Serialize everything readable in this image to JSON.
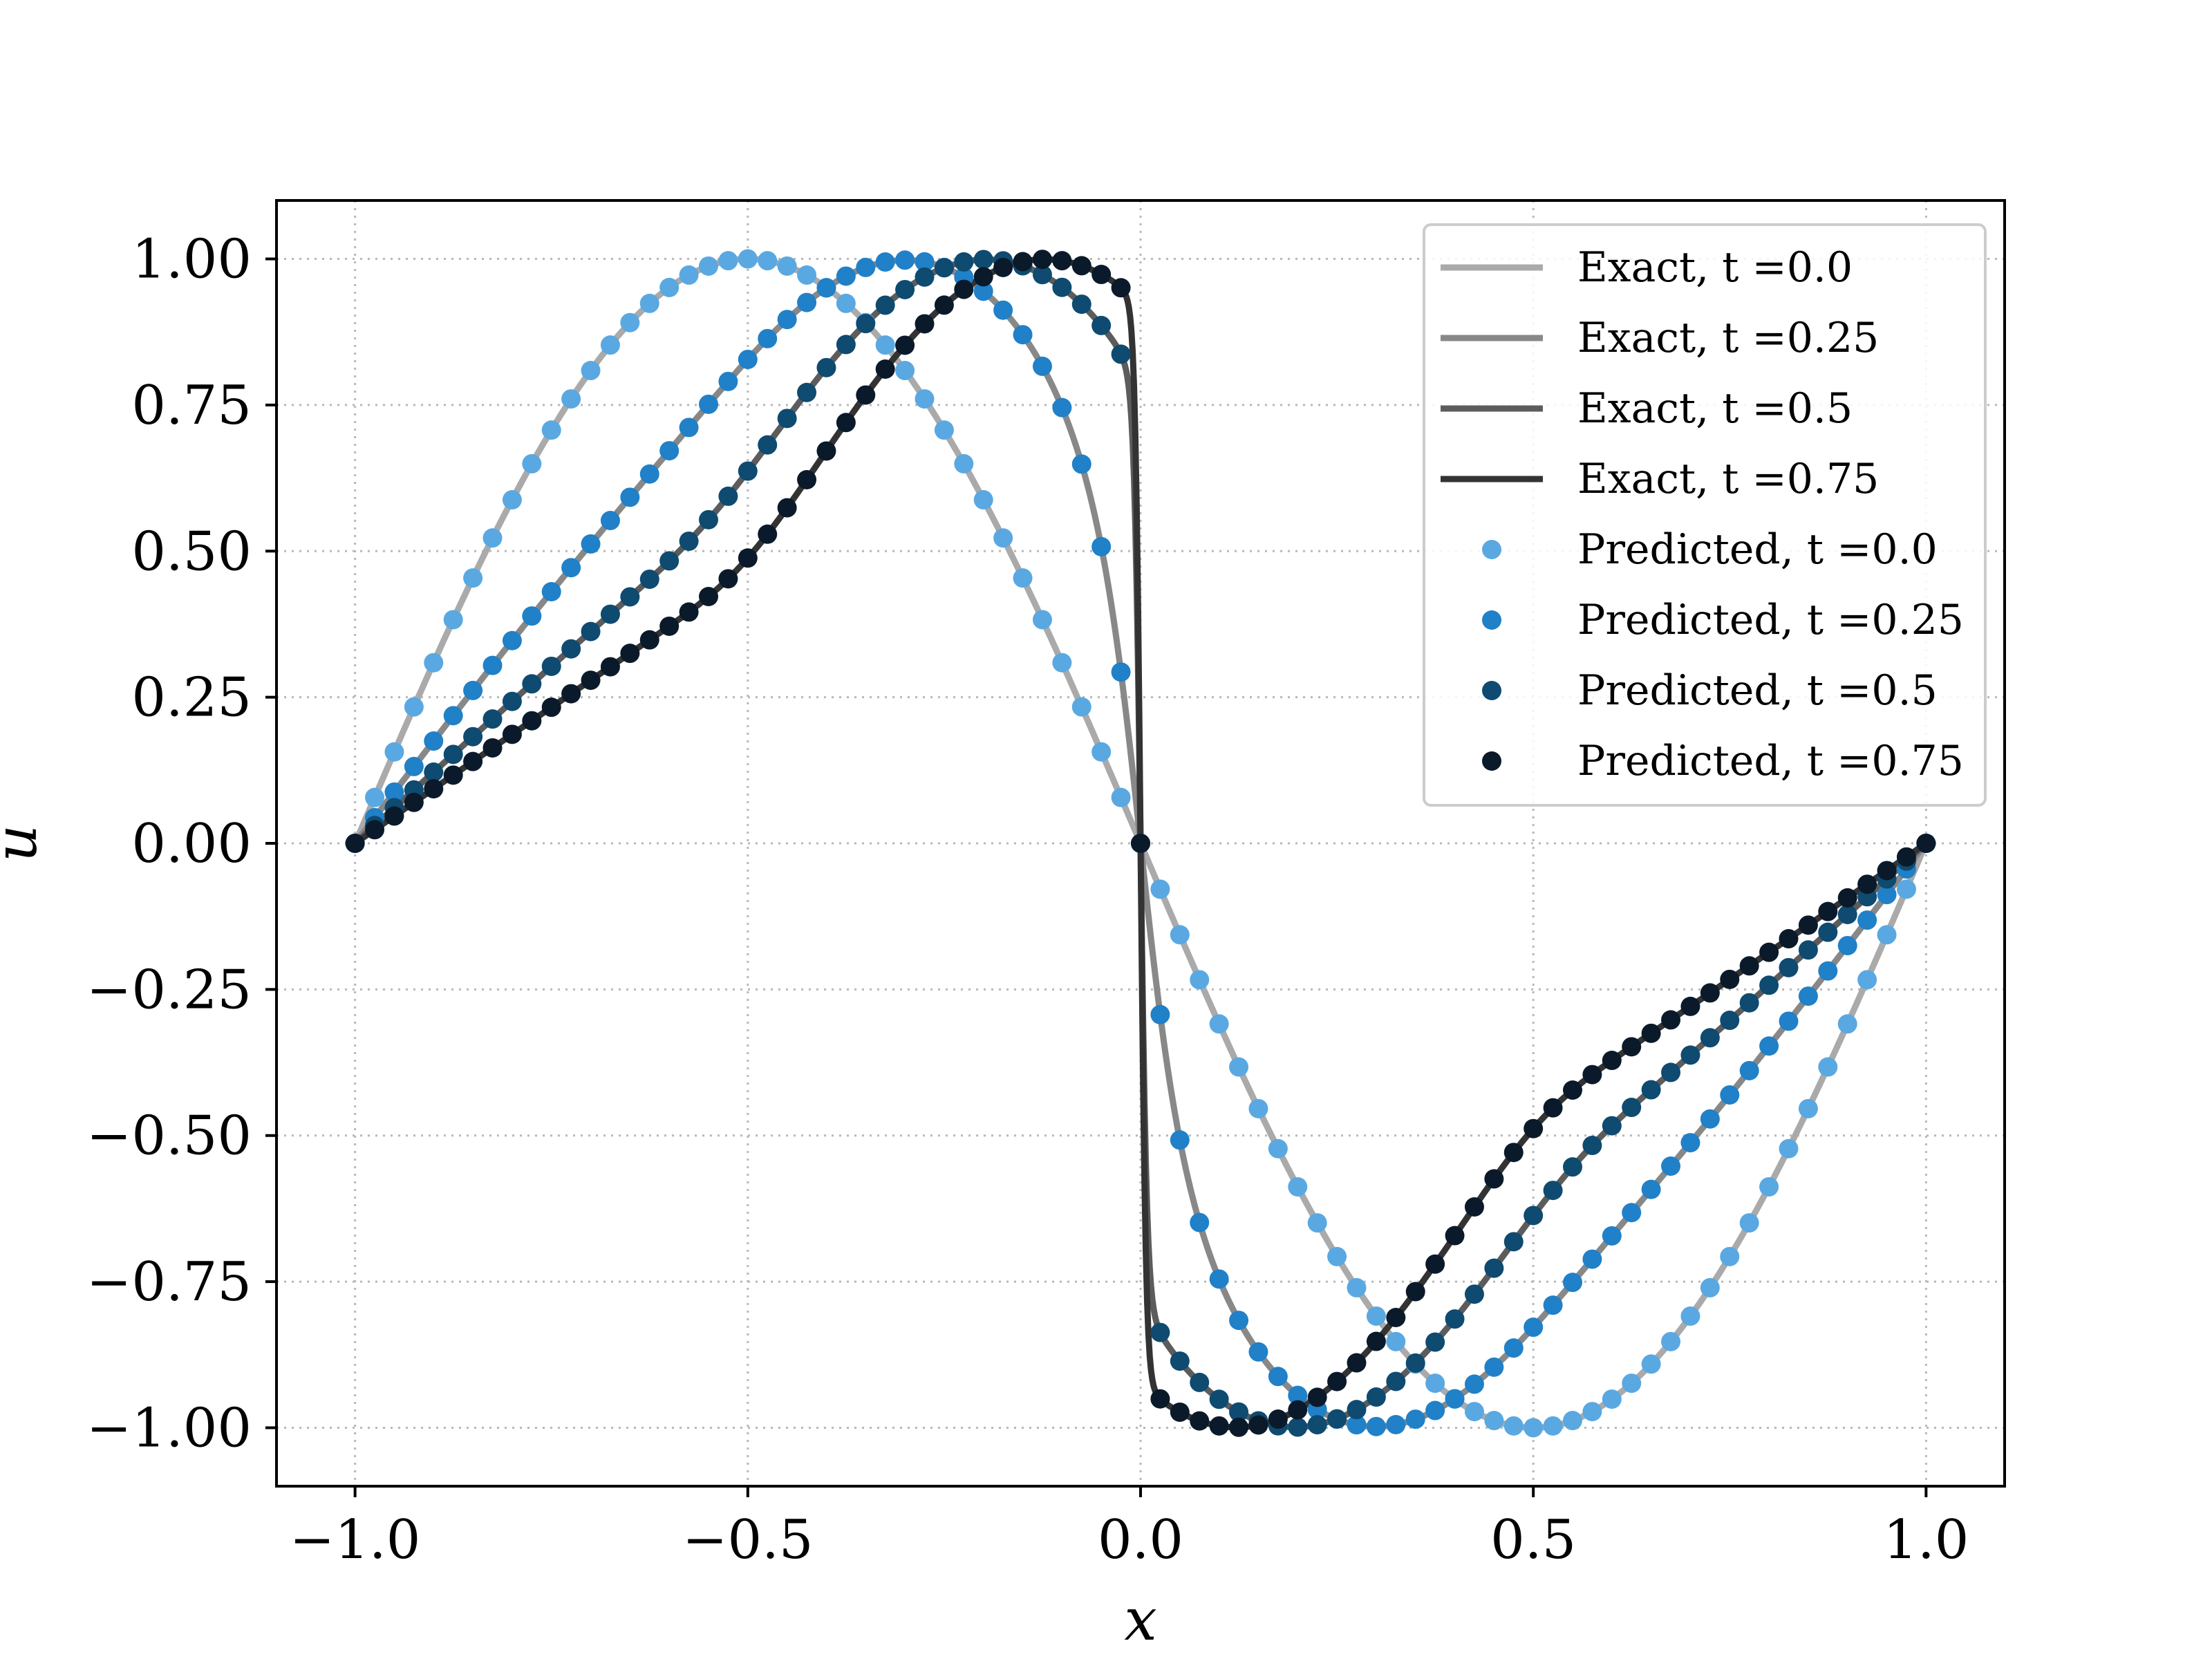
{
  "chart_data": {
    "type": "line",
    "title": "",
    "xlabel": "x",
    "ylabel": "u",
    "xlim": [
      -1.1,
      1.1
    ],
    "ylim": [
      -1.1,
      1.1
    ],
    "xticks": [
      -1.0,
      -0.5,
      0.0,
      0.5,
      1.0
    ],
    "xtick_labels": [
      "−1.0",
      "−0.5",
      "0.0",
      "0.5",
      "1.0"
    ],
    "yticks": [
      1.0,
      0.75,
      0.5,
      0.25,
      0.0,
      -0.25,
      -0.5,
      -0.75,
      -1.0
    ],
    "ytick_labels": [
      "1.00",
      "0.75",
      "0.50",
      "0.25",
      "0.00",
      "−0.25",
      "−0.50",
      "−0.75",
      "−1.00"
    ],
    "grid": true,
    "legend_position": "top-right",
    "series": [
      {
        "name": "Exact, t =0.0",
        "kind": "line",
        "t": 0.0,
        "color": "#aaaaaa"
      },
      {
        "name": "Exact, t =0.25",
        "kind": "line",
        "t": 0.25,
        "color": "#888888"
      },
      {
        "name": "Exact, t =0.5",
        "kind": "line",
        "t": 0.5,
        "color": "#5c5c5c"
      },
      {
        "name": "Exact, t =0.75",
        "kind": "line",
        "t": 0.75,
        "color": "#333333"
      },
      {
        "name": "Predicted, t =0.0",
        "kind": "scatter",
        "t": 0.0,
        "color": "#5aa8e2"
      },
      {
        "name": "Predicted, t =0.25",
        "kind": "scatter",
        "t": 0.25,
        "color": "#2080c8"
      },
      {
        "name": "Predicted, t =0.5",
        "kind": "scatter",
        "t": 0.5,
        "color": "#0f4a70"
      },
      {
        "name": "Predicted, t =0.75",
        "kind": "scatter",
        "t": 0.75,
        "color": "#0a1a2a"
      }
    ],
    "sample_x_range": [
      -1.0,
      1.0
    ],
    "sample_count": 81
  }
}
